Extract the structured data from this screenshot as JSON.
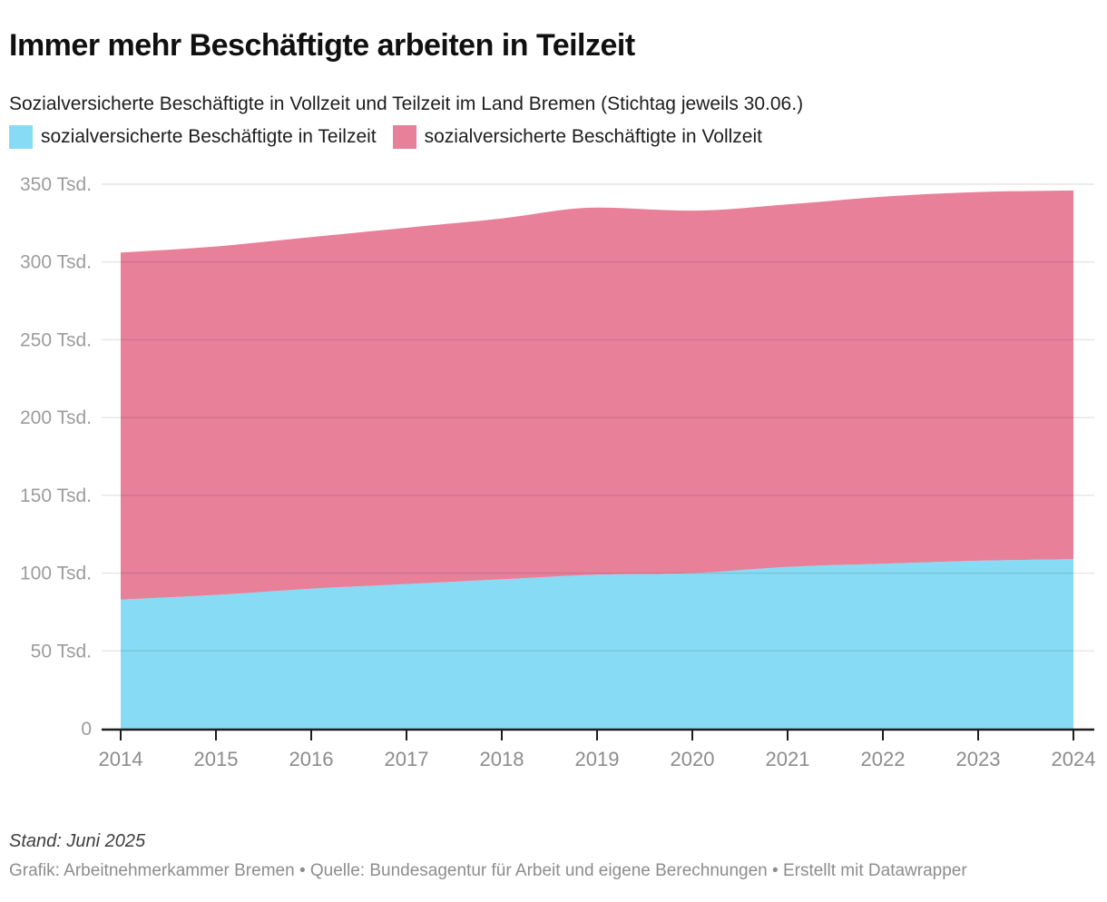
{
  "header": {
    "title": "Immer mehr Beschäftigte arbeiten in Teilzeit",
    "subtitle": "Sozialversicherte Beschäftigte in Vollzeit und Teilzeit im Land Bremen (Stichtag jeweils 30.06.)"
  },
  "legend": {
    "items": [
      {
        "label": "sozialversicherte Beschäftigte in Teilzeit",
        "color": "#87DBF4"
      },
      {
        "label": "sozialversicherte Beschäftigte in Vollzeit",
        "color": "#E8809A"
      }
    ]
  },
  "chart_data": {
    "type": "area",
    "stacked": true,
    "x": [
      2014,
      2015,
      2016,
      2017,
      2018,
      2019,
      2020,
      2021,
      2022,
      2023,
      2024
    ],
    "series": [
      {
        "name": "sozialversicherte Beschäftigte in Teilzeit",
        "color": "#87DBF4",
        "values": [
          83,
          86,
          90,
          93,
          96,
          99,
          100,
          104,
          106,
          108,
          109
        ]
      },
      {
        "name": "sozialversicherte Beschäftigte in Vollzeit",
        "color": "#E8809A",
        "values": [
          223,
          224,
          226,
          229,
          232,
          236,
          233,
          233,
          236,
          237,
          237
        ]
      }
    ],
    "unit": "Tsd.",
    "ylim": [
      0,
      350
    ],
    "y_ticks": [
      {
        "value": 0,
        "label": "0"
      },
      {
        "value": 50,
        "label": "50 Tsd."
      },
      {
        "value": 100,
        "label": "100 Tsd."
      },
      {
        "value": 150,
        "label": "150 Tsd."
      },
      {
        "value": 200,
        "label": "200 Tsd."
      },
      {
        "value": 250,
        "label": "250 Tsd."
      },
      {
        "value": 300,
        "label": "300 Tsd."
      },
      {
        "value": 350,
        "label": "350 Tsd."
      }
    ],
    "grid": true,
    "legend_position": "top"
  },
  "footer": {
    "stand": "Stand: Juni 2025",
    "source": "Grafik: Arbeitnehmerkammer Bremen • Quelle: Bundesagentur für Arbeit und eigene Berechnungen • Erstellt mit Datawrapper"
  }
}
